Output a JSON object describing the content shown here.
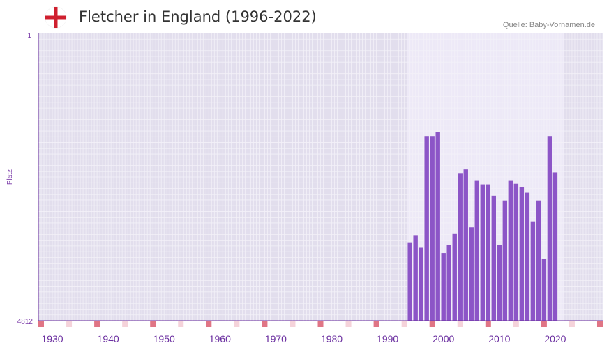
{
  "header": {
    "title": "Fletcher in England (1996-2022)",
    "source": "Quelle: Baby-Vornamen.de",
    "flag_icon": "england-flag-icon"
  },
  "colors": {
    "bar": "#8c55c7",
    "plot_bg": "#e2deed",
    "highlight_bg": "#ede9f7",
    "grid": "#f3f1f8",
    "axis": "#6b2fa0",
    "marker_strong": "#e07585",
    "marker_light": "#f5d3da",
    "flag_red": "#cf1f2e"
  },
  "chart_data": {
    "type": "bar",
    "title": "Fletcher in England (1996-2022)",
    "xlabel": "",
    "ylabel": "Platz",
    "xlim": [
      1928,
      2029
    ],
    "ylim": [
      4812,
      1
    ],
    "y_reversed": true,
    "y_ticks": [
      "1",
      "4812"
    ],
    "x_ticks": [
      1930,
      1940,
      1950,
      1960,
      1970,
      1980,
      1990,
      2000,
      2010,
      2020
    ],
    "highlight_range": [
      1994,
      2021
    ],
    "years": [
      1994,
      1995,
      1996,
      1997,
      1998,
      1999,
      2000,
      2001,
      2002,
      2003,
      2004,
      2005,
      2006,
      2007,
      2008,
      2009,
      2010,
      2011,
      2012,
      2013,
      2014,
      2015,
      2016,
      2017,
      2018,
      2019,
      2020
    ],
    "ranks": [
      3500,
      3380,
      3580,
      1720,
      1720,
      1650,
      3680,
      3540,
      3350,
      2340,
      2280,
      3250,
      2460,
      2530,
      2530,
      2720,
      3550,
      2800,
      2460,
      2520,
      2570,
      2670,
      3150,
      2800,
      3780,
      1720,
      2330
    ]
  }
}
